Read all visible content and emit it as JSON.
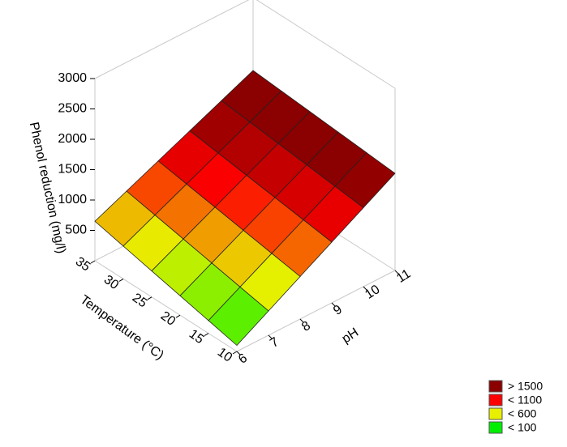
{
  "chart_data": {
    "type": "surface",
    "x_label": "pH",
    "y_label": "Temperature (°C)",
    "z_label": "Phenol reduction (mg/l)",
    "x": [
      6,
      7,
      8,
      9,
      10,
      11
    ],
    "y": [
      10,
      15,
      20,
      25,
      30,
      35
    ],
    "z": [
      [
        100,
        400,
        700,
        1000,
        1300,
        1600
      ],
      [
        210,
        496,
        782,
        1068,
        1354,
        1640
      ],
      [
        320,
        592,
        864,
        1136,
        1408,
        1680
      ],
      [
        430,
        688,
        946,
        1204,
        1462,
        1720
      ],
      [
        540,
        784,
        1028,
        1272,
        1516,
        1760
      ],
      [
        650,
        880,
        1110,
        1340,
        1570,
        1800
      ]
    ],
    "xlim": [
      6,
      11
    ],
    "xticks": [
      6,
      7,
      8,
      9,
      10,
      11
    ],
    "ylim": [
      10,
      35
    ],
    "yticks": [
      10,
      15,
      20,
      25,
      30,
      35
    ],
    "zlim": [
      0,
      3000
    ],
    "zticks": [
      500,
      1000,
      1500,
      2000,
      2500,
      3000
    ],
    "legend": [
      {
        "value": 1500,
        "label": "> 1500",
        "color": "#8b0000"
      },
      {
        "value": 1100,
        "label": "< 1100",
        "color": "#ff0000"
      },
      {
        "value": 600,
        "label": "< 600",
        "color": "#e8f000"
      },
      {
        "value": 100,
        "label": "< 100",
        "color": "#00ee00"
      }
    ]
  }
}
